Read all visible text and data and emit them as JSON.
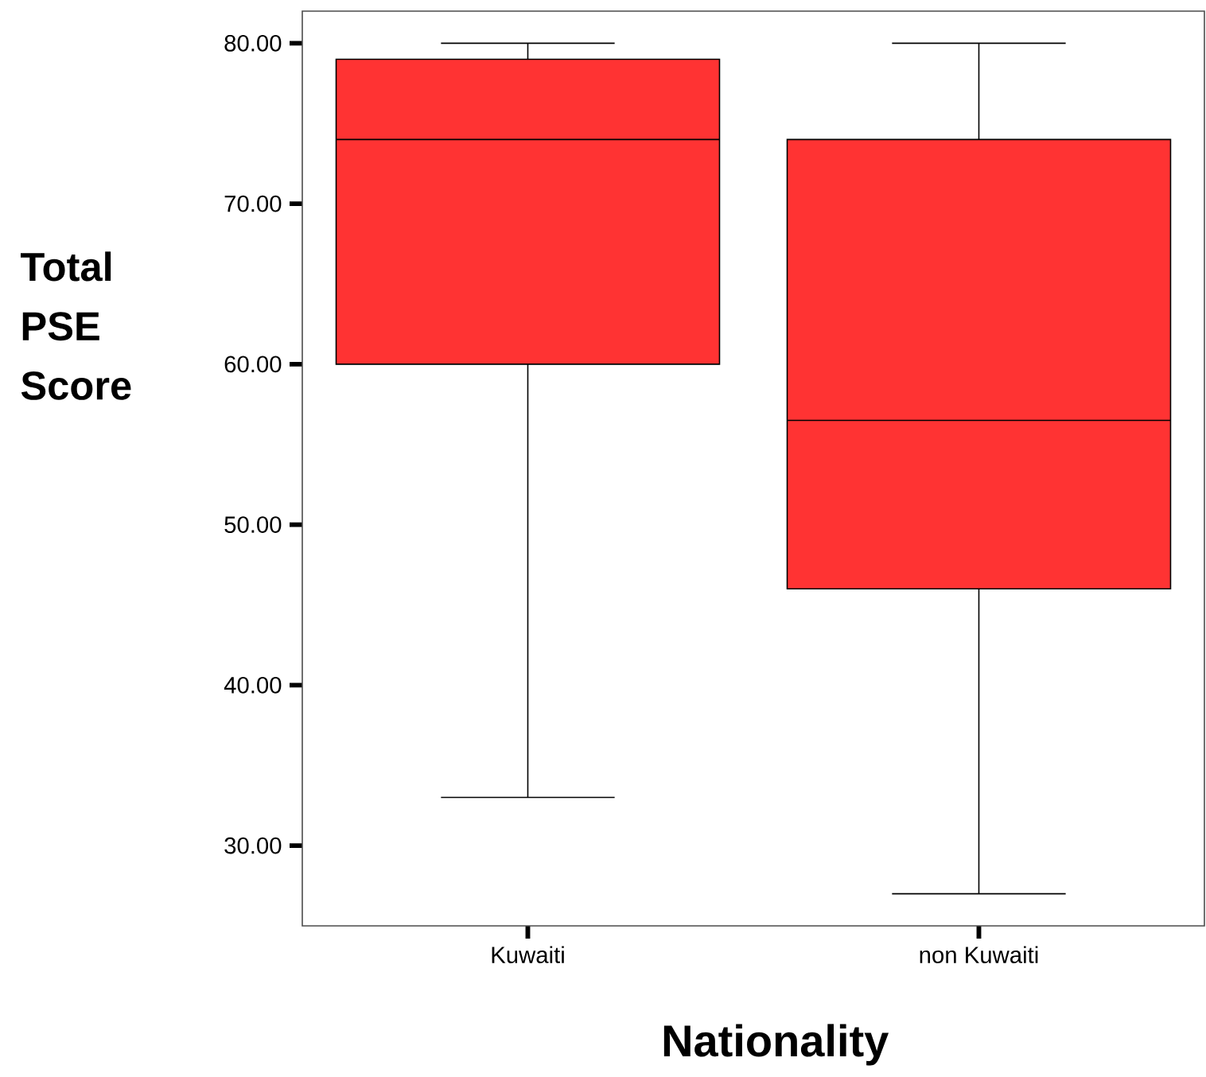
{
  "chart_data": {
    "type": "box",
    "xlabel": "Nationality",
    "ylabel": "Total PSE Score",
    "categories": [
      "Kuwaiti",
      "non Kuwaiti"
    ],
    "color": "#ff3333",
    "boxes": [
      {
        "low": 33,
        "q1": 60,
        "median": 74,
        "q3": 79,
        "high": 80
      },
      {
        "low": 27,
        "q1": 46,
        "median": 56.5,
        "q3": 74,
        "high": 80
      }
    ],
    "ylim": [
      25,
      82
    ],
    "yticks": [
      {
        "value": 30,
        "label": "30.00"
      },
      {
        "value": 40,
        "label": "40.00"
      },
      {
        "value": 50,
        "label": "50.00"
      },
      {
        "value": 60,
        "label": "60.00"
      },
      {
        "value": 70,
        "label": "70.00"
      },
      {
        "value": 80,
        "label": "80.00"
      }
    ],
    "grid": false
  }
}
